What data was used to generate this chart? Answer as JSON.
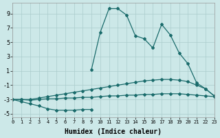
{
  "xlabel": "Humidex (Indice chaleur)",
  "bg_color": "#cce8e8",
  "grid_color": "#aacccc",
  "line_color": "#1a6b6b",
  "xlim": [
    0,
    23
  ],
  "ylim": [
    -5.5,
    10.5
  ],
  "yticks": [
    -5,
    -3,
    -1,
    1,
    3,
    5,
    7,
    9
  ],
  "xticks": [
    0,
    1,
    2,
    3,
    4,
    5,
    6,
    7,
    8,
    9,
    10,
    11,
    12,
    13,
    14,
    15,
    16,
    17,
    18,
    19,
    20,
    21,
    22,
    23
  ],
  "line_peak_x": [
    9,
    10,
    11,
    12,
    13,
    14,
    15,
    16,
    17,
    18,
    19,
    20,
    21,
    22,
    23
  ],
  "line_peak_y": [
    1.2,
    6.4,
    9.7,
    9.7,
    8.8,
    5.9,
    5.5,
    4.2,
    7.5,
    6.0,
    3.5,
    2.0,
    -0.7,
    -1.5,
    -2.5
  ],
  "line_upper_x": [
    0,
    1,
    2,
    3,
    4,
    5,
    6,
    7,
    8,
    9,
    10,
    11,
    12,
    13,
    14,
    15,
    16,
    17,
    18,
    19,
    20,
    21,
    22,
    23
  ],
  "line_upper_y": [
    -3.0,
    -3.0,
    -3.0,
    -2.8,
    -2.6,
    -2.4,
    -2.2,
    -2.0,
    -1.8,
    -1.6,
    -1.4,
    -1.2,
    -1.0,
    -0.8,
    -0.6,
    -0.4,
    -0.3,
    -0.2,
    -0.2,
    -0.3,
    -0.5,
    -1.0,
    -1.5,
    -2.5
  ],
  "line_lower_x": [
    0,
    1,
    2,
    3,
    4,
    5,
    6,
    7,
    8,
    9,
    10,
    11,
    12,
    13,
    14,
    15,
    16,
    17,
    18,
    19,
    20,
    21,
    22,
    23
  ],
  "line_lower_y": [
    -3.0,
    -3.0,
    -3.1,
    -3.0,
    -2.9,
    -2.9,
    -2.8,
    -2.8,
    -2.7,
    -2.7,
    -2.6,
    -2.5,
    -2.5,
    -2.4,
    -2.4,
    -2.3,
    -2.3,
    -2.2,
    -2.2,
    -2.2,
    -2.3,
    -2.4,
    -2.5,
    -2.6
  ],
  "line_bot_x": [
    0,
    1,
    2,
    3,
    4,
    5,
    6,
    7,
    8,
    9
  ],
  "line_bot_y": [
    -3.0,
    -3.3,
    -3.6,
    -3.9,
    -4.3,
    -4.5,
    -4.5,
    -4.5,
    -4.4,
    -4.4
  ]
}
